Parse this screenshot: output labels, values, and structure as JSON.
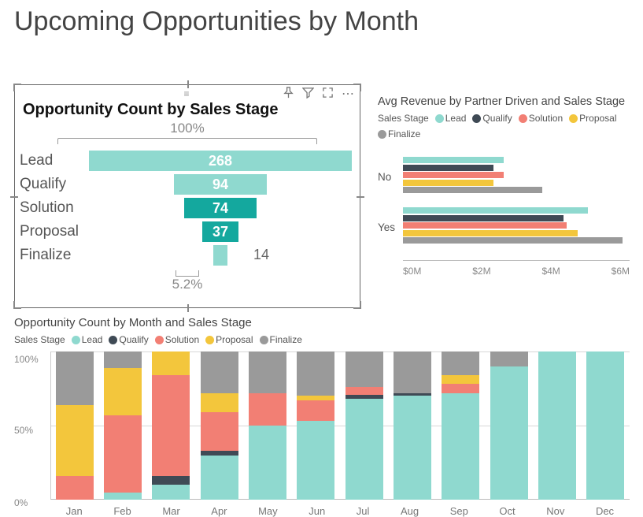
{
  "title": "Upcoming Opportunities by Month",
  "colors": {
    "lead": "#8fd9cf",
    "qualify": "#3f4a55",
    "solution": "#f27f74",
    "proposal": "#f3c63c",
    "finalize": "#9a9a9a",
    "solution_bar_dark": "#14a89e",
    "text_muted": "#888888",
    "grid": "#d8d8d8",
    "border": "#666666",
    "background": "#ffffff"
  },
  "funnel": {
    "title": "Opportunity Count by Sales Stage",
    "top_pct": "100%",
    "bottom_pct": "5.2%",
    "max_value": 268,
    "rows": [
      {
        "label": "Lead",
        "value": 268,
        "value_text": "268",
        "color": "#8fd9cf",
        "text_color": "#ffffff"
      },
      {
        "label": "Qualify",
        "value": 94,
        "value_text": "94",
        "color": "#8fd9cf",
        "text_color": "#ffffff"
      },
      {
        "label": "Solution",
        "value": 74,
        "value_text": "74",
        "color": "#14a89e",
        "text_color": "#ffffff"
      },
      {
        "label": "Proposal",
        "value": 37,
        "value_text": "37",
        "color": "#14a89e",
        "text_color": "#ffffff"
      },
      {
        "label": "Finalize",
        "value": 14,
        "value_text": "14",
        "color": "#8fd9cf",
        "text_color": "#666666",
        "value_outside": true
      }
    ],
    "label_fontsize": 19,
    "value_fontsize": 18
  },
  "avg_revenue": {
    "title": "Avg Revenue by Partner Driven and Sales Stage",
    "legend_label": "Sales Stage",
    "legend": [
      {
        "name": "Lead",
        "color": "#8fd9cf"
      },
      {
        "name": "Qualify",
        "color": "#3f4a55"
      },
      {
        "name": "Solution",
        "color": "#f27f74"
      },
      {
        "name": "Proposal",
        "color": "#f3c63c"
      },
      {
        "name": "Finalize",
        "color": "#9a9a9a"
      }
    ],
    "x_ticks": [
      "$0M",
      "$2M",
      "$4M",
      "$6M"
    ],
    "x_max": 6.5,
    "categories": [
      {
        "label": "No",
        "series": {
          "lead": 2.9,
          "qualify": 2.6,
          "solution": 2.9,
          "proposal": 2.6,
          "finalize": 4.0
        }
      },
      {
        "label": "Yes",
        "series": {
          "lead": 5.3,
          "qualify": 4.6,
          "solution": 4.7,
          "proposal": 5.0,
          "finalize": 6.3
        }
      }
    ]
  },
  "by_month": {
    "title": "Opportunity Count by Month and Sales Stage",
    "legend_label": "Sales Stage",
    "legend": [
      {
        "name": "Lead",
        "color": "#8fd9cf"
      },
      {
        "name": "Qualify",
        "color": "#3f4a55"
      },
      {
        "name": "Solution",
        "color": "#f27f74"
      },
      {
        "name": "Proposal",
        "color": "#f3c63c"
      },
      {
        "name": "Finalize",
        "color": "#9a9a9a"
      }
    ],
    "y_ticks": [
      "0%",
      "50%",
      "100%"
    ],
    "series_order": [
      "lead",
      "qualify",
      "solution",
      "proposal",
      "finalize"
    ],
    "months": [
      {
        "label": "Jan",
        "stack": {
          "lead": 0,
          "qualify": 0,
          "solution": 16,
          "proposal": 48,
          "finalize": 36
        }
      },
      {
        "label": "Feb",
        "stack": {
          "lead": 5,
          "qualify": 0,
          "solution": 52,
          "proposal": 32,
          "finalize": 11
        }
      },
      {
        "label": "Mar",
        "stack": {
          "lead": 10,
          "qualify": 6,
          "solution": 68,
          "proposal": 16,
          "finalize": 0
        }
      },
      {
        "label": "Apr",
        "stack": {
          "lead": 30,
          "qualify": 3,
          "solution": 26,
          "proposal": 13,
          "finalize": 28
        }
      },
      {
        "label": "May",
        "stack": {
          "lead": 50,
          "qualify": 0,
          "solution": 22,
          "proposal": 0,
          "finalize": 28
        }
      },
      {
        "label": "Jun",
        "stack": {
          "lead": 53,
          "qualify": 0,
          "solution": 14,
          "proposal": 3,
          "finalize": 30
        }
      },
      {
        "label": "Jul",
        "stack": {
          "lead": 68,
          "qualify": 3,
          "solution": 5,
          "proposal": 0,
          "finalize": 24
        }
      },
      {
        "label": "Aug",
        "stack": {
          "lead": 70,
          "qualify": 2,
          "solution": 0,
          "proposal": 0,
          "finalize": 28
        }
      },
      {
        "label": "Sep",
        "stack": {
          "lead": 72,
          "qualify": 0,
          "solution": 6,
          "proposal": 6,
          "finalize": 16
        }
      },
      {
        "label": "Oct",
        "stack": {
          "lead": 90,
          "qualify": 0,
          "solution": 0,
          "proposal": 0,
          "finalize": 10
        }
      },
      {
        "label": "Nov",
        "stack": {
          "lead": 100,
          "qualify": 0,
          "solution": 0,
          "proposal": 0,
          "finalize": 0
        }
      },
      {
        "label": "Dec",
        "stack": {
          "lead": 100,
          "qualify": 0,
          "solution": 0,
          "proposal": 0,
          "finalize": 0
        }
      }
    ]
  }
}
